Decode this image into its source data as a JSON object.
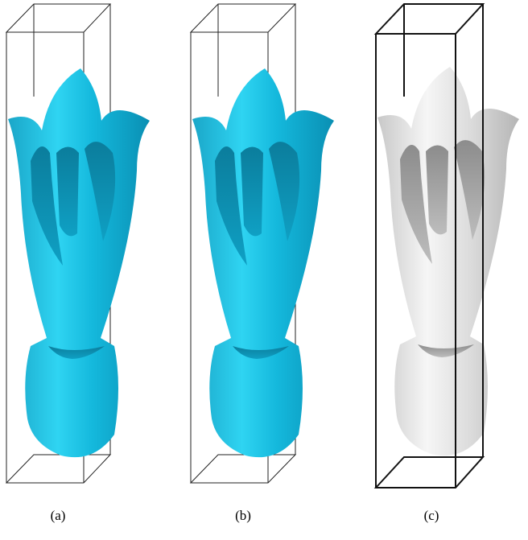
{
  "panels": {
    "labels": [
      "(a)",
      "(b)",
      "(c)"
    ]
  }
}
